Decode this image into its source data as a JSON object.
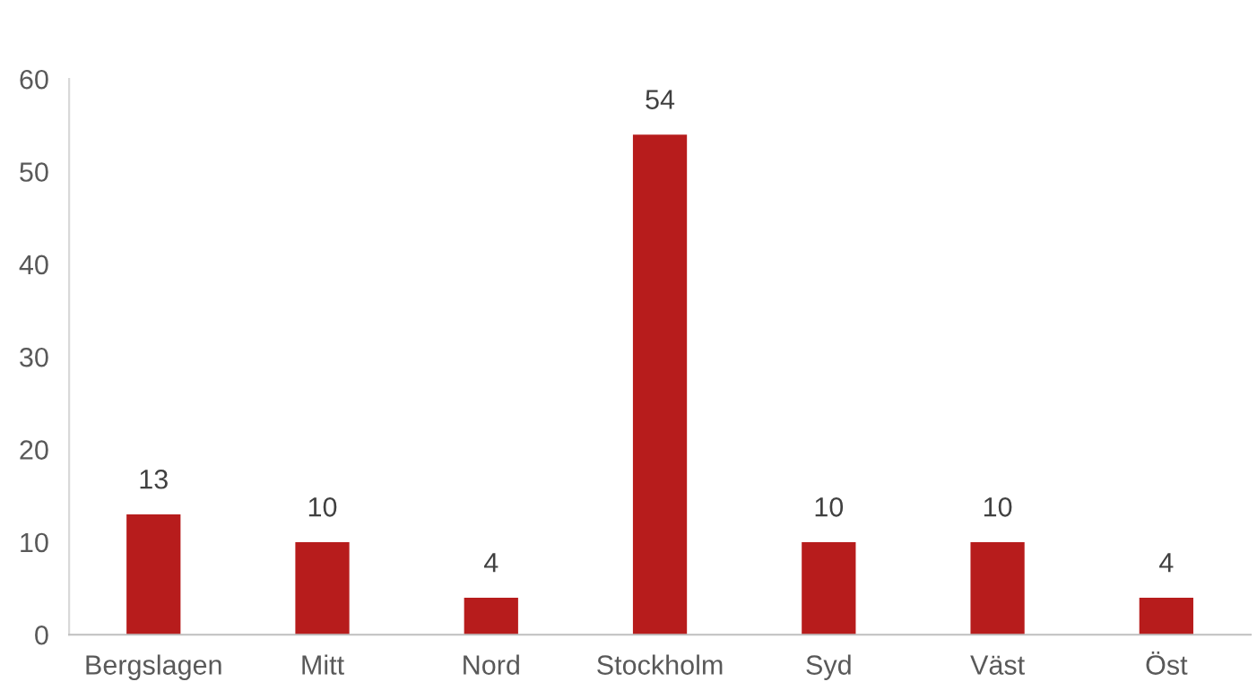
{
  "chart_data": {
    "type": "bar",
    "categories": [
      "Bergslagen",
      "Mitt",
      "Nord",
      "Stockholm",
      "Syd",
      "Väst",
      "Öst"
    ],
    "values": [
      13,
      10,
      4,
      54,
      10,
      10,
      4
    ],
    "color": "#b71c1c",
    "ylim": [
      0,
      60
    ],
    "yticks": [
      0,
      10,
      20,
      30,
      40,
      50,
      60
    ],
    "grid": false,
    "data_labels": true
  }
}
